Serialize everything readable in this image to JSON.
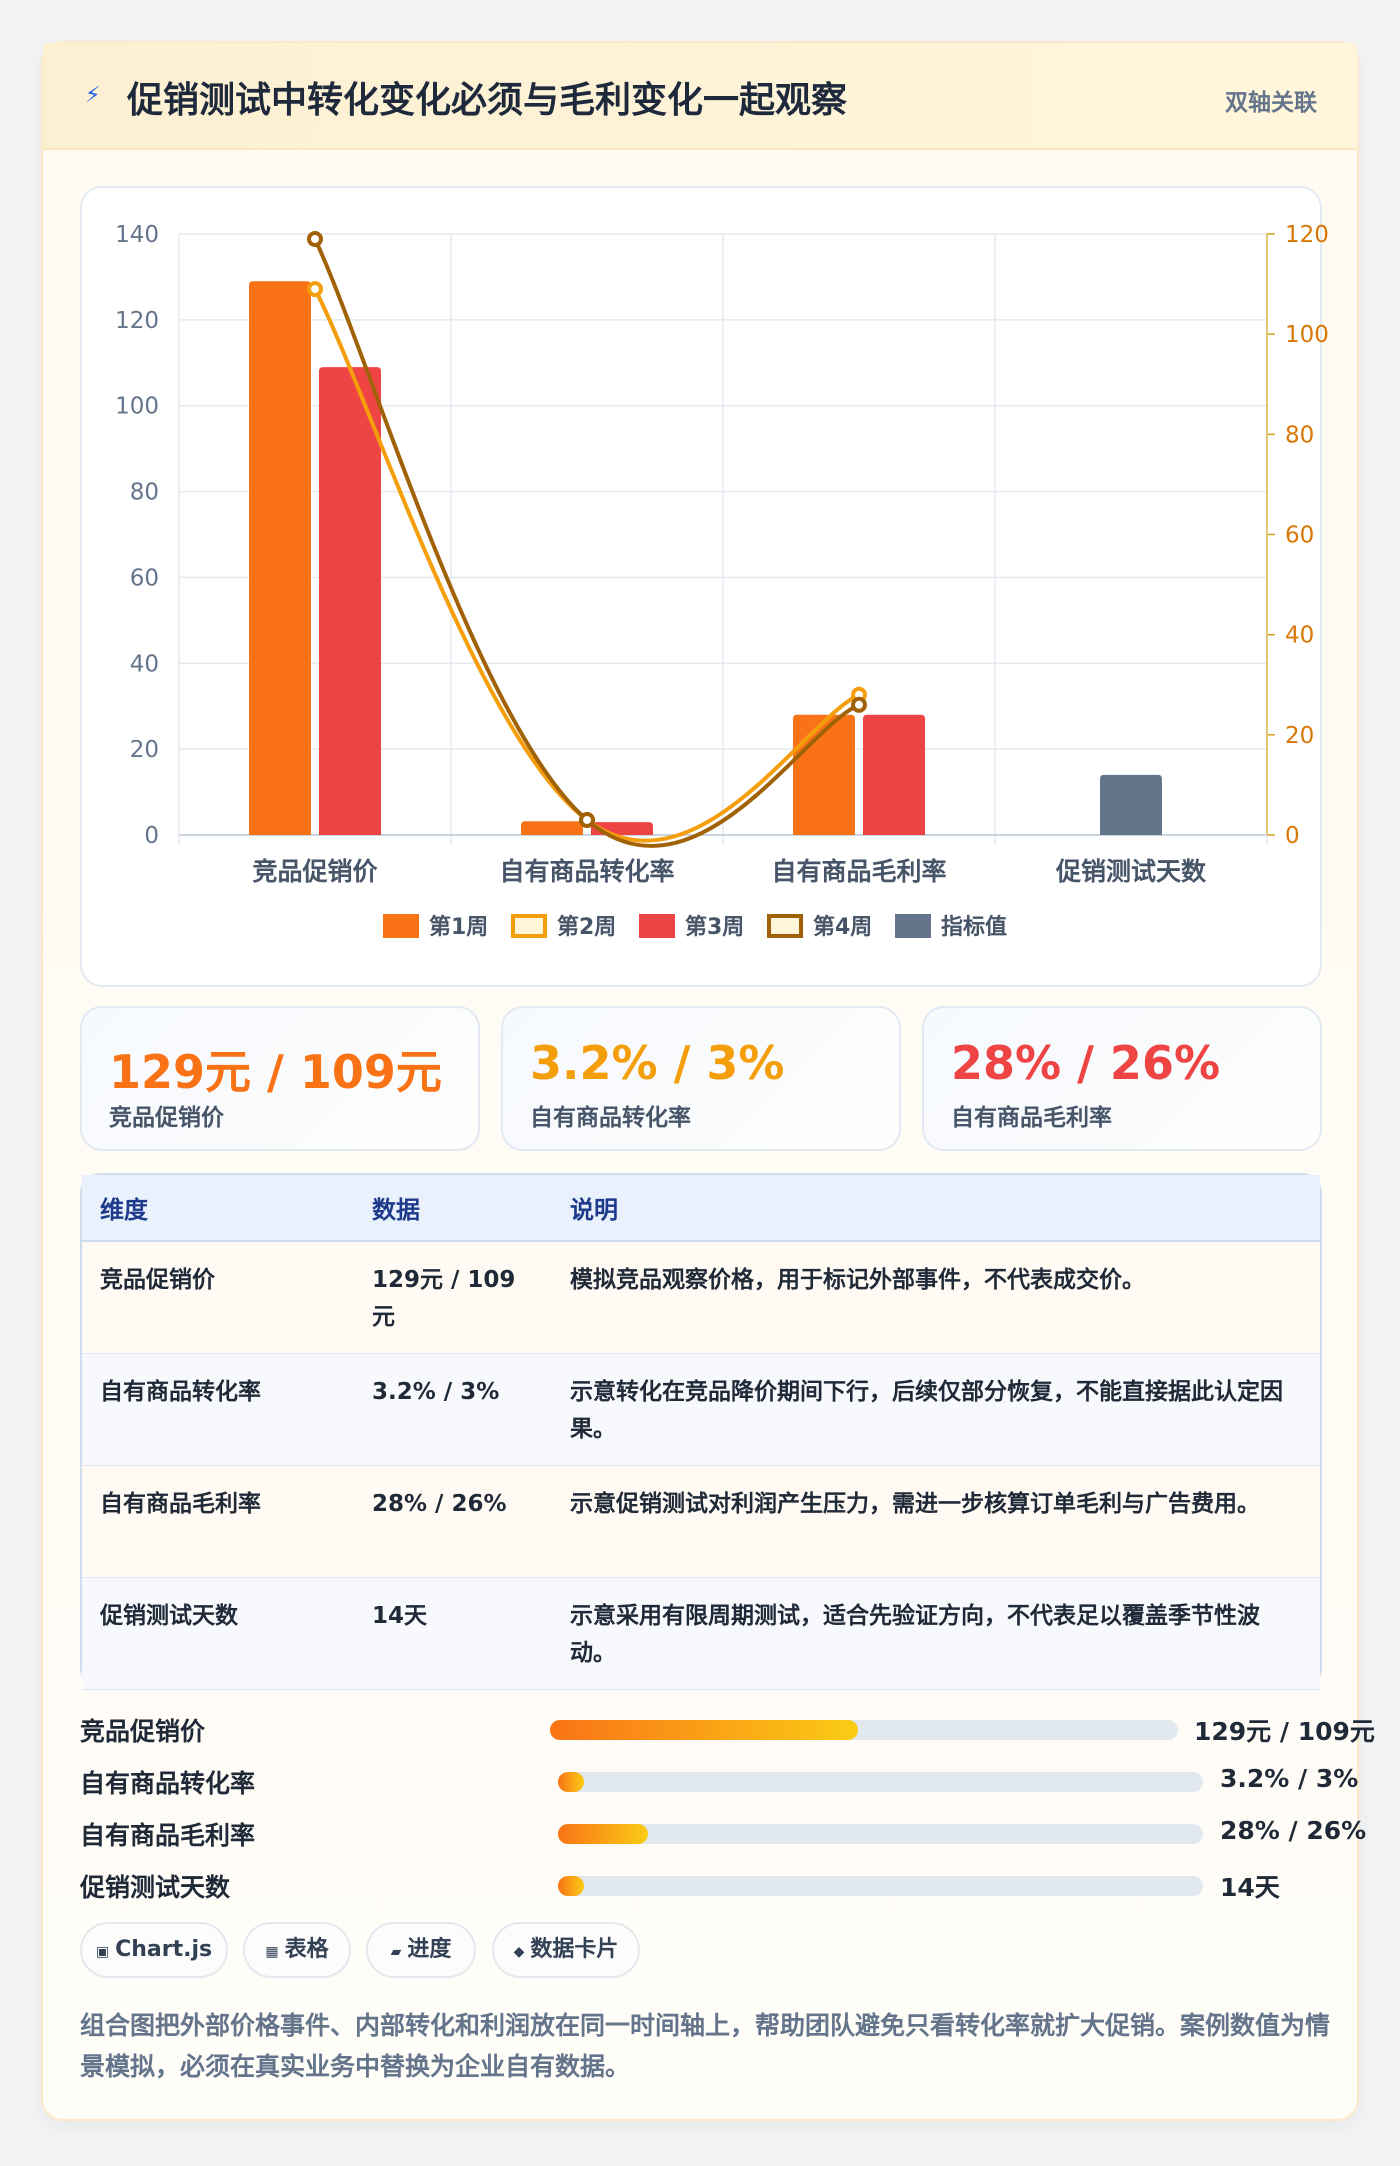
{
  "header": {
    "title": "促销测试中转化变化必须与毛利变化一起观察",
    "tag": "双轴关联"
  },
  "chart_data": {
    "type": "bar",
    "categories": [
      "竞品促销价",
      "自有商品转化率",
      "自有商品毛利率",
      "促销测试天数"
    ],
    "y_left": {
      "range": [
        0,
        140
      ],
      "ticks": [
        0,
        20,
        40,
        60,
        80,
        100,
        120,
        140
      ]
    },
    "y_right": {
      "range": [
        0,
        120
      ],
      "ticks": [
        0,
        20,
        40,
        60,
        80,
        100,
        120
      ]
    },
    "grid": true,
    "legend_position": "bottom",
    "series": [
      {
        "name": "第1周",
        "type": "bar",
        "axis": "left",
        "color": "#f97316",
        "values": [
          129,
          3.2,
          28,
          null
        ]
      },
      {
        "name": "第2周",
        "type": "line",
        "axis": "right",
        "color": "#f59e0b",
        "values": [
          109,
          3,
          28,
          null
        ]
      },
      {
        "name": "第3周",
        "type": "bar",
        "axis": "left",
        "color": "#ef4444",
        "values": [
          109,
          3,
          28,
          null
        ]
      },
      {
        "name": "第4周",
        "type": "line",
        "axis": "right",
        "color": "#a16207",
        "values": [
          119,
          3,
          26,
          null
        ]
      },
      {
        "name": "指标值",
        "type": "bar",
        "axis": "left",
        "color": "#64748b",
        "values": [
          null,
          null,
          null,
          14
        ]
      }
    ]
  },
  "stats": [
    {
      "value": "129元 / 109元",
      "label": "竞品促销价",
      "color": "#f97316"
    },
    {
      "value": "3.2% / 3%",
      "label": "自有商品转化率",
      "color": "#f59e0b"
    },
    {
      "value": "28% / 26%",
      "label": "自有商品毛利率",
      "color": "#ef4444"
    }
  ],
  "table": {
    "headers": [
      "维度",
      "数据",
      "说明"
    ],
    "rows": [
      [
        "竞品促销价",
        "129元 / 109元",
        "模拟竞品观察价格，用于标记外部事件，不代表成交价。"
      ],
      [
        "自有商品转化率",
        "3.2% / 3%",
        "示意转化在竞品降价期间下行，后续仅部分恢复，不能直接据此认定因果。"
      ],
      [
        "自有商品毛利率",
        "28% / 26%",
        "示意促销测试对利润产生压力，需进一步核算订单毛利与广告费用。"
      ],
      [
        "促销测试天数",
        "14天",
        "示意采用有限周期测试，适合先验证方向，不代表足以覆盖季节性波动。"
      ]
    ]
  },
  "progress": [
    {
      "label": "竞品促销价",
      "value": "129元 / 109元",
      "fraction": 0.49
    },
    {
      "label": "自有商品转化率",
      "value": "3.2% / 3%",
      "fraction": 0.04
    },
    {
      "label": "自有商品毛利率",
      "value": "28% / 26%",
      "fraction": 0.14
    },
    {
      "label": "促销测试天数",
      "value": "14天",
      "fraction": 0.04
    }
  ],
  "chips": [
    {
      "icon": "chart-icon",
      "glyph": "▣",
      "label": "Chart.js"
    },
    {
      "icon": "table-icon",
      "glyph": "▦",
      "label": "表格"
    },
    {
      "icon": "progress-icon",
      "glyph": "▰",
      "label": "进度"
    },
    {
      "icon": "card-icon",
      "glyph": "◆",
      "label": "数据卡片"
    }
  ],
  "footnote": "组合图把外部价格事件、内部转化和利润放在同一时间轴上，帮助团队避免只看转化率就扩大促销。案例数值为情景模拟，必须在真实业务中替换为企业自有数据。"
}
